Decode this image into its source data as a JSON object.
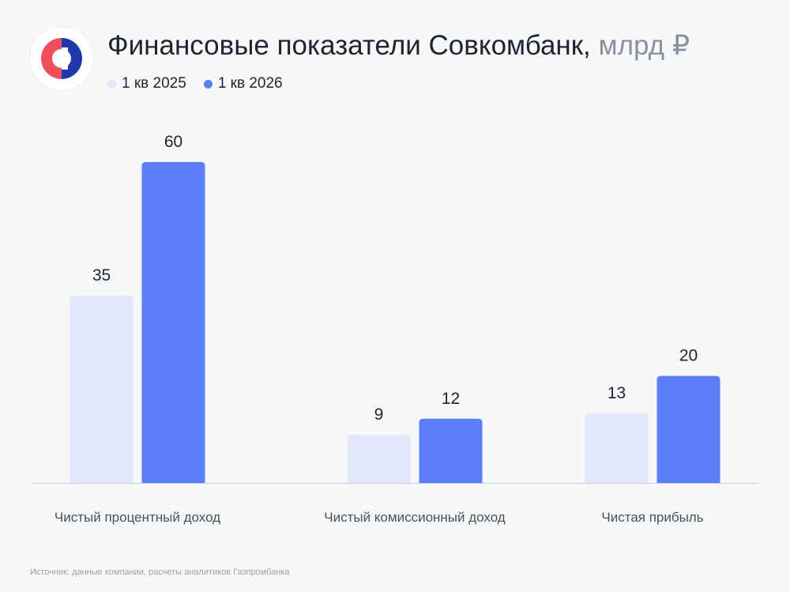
{
  "header": {
    "title": "Финансовые показатели Совкомбанк,",
    "unit": "млрд ₽",
    "logo_icon": "sovcombank-logo-icon"
  },
  "legend": {
    "items": [
      {
        "label": "1 кв 2025",
        "color": "#e3e7fb"
      },
      {
        "label": "1 кв 2026",
        "color": "#5a7ff8"
      }
    ]
  },
  "chart_data": {
    "type": "bar",
    "categories": [
      "Чистый процентный доход",
      "Чистый комиссионный доход",
      "Чистая прибыль"
    ],
    "series": [
      {
        "name": "1 кв 2025",
        "values": [
          35,
          9,
          13
        ],
        "color": "#e3e7fb"
      },
      {
        "name": "1 кв 2026",
        "values": [
          60,
          12,
          20
        ],
        "color": "#5a7ff8"
      }
    ],
    "title": "Финансовые показатели Совкомбанк, млрд ₽",
    "xlabel": "",
    "ylabel": "",
    "ylim": [
      0,
      60
    ],
    "grid": false,
    "legend_position": "top-left",
    "data_labels": true
  },
  "footer": {
    "source": "Источник: данные компании, расчеты аналитиков Газпромбанка"
  }
}
